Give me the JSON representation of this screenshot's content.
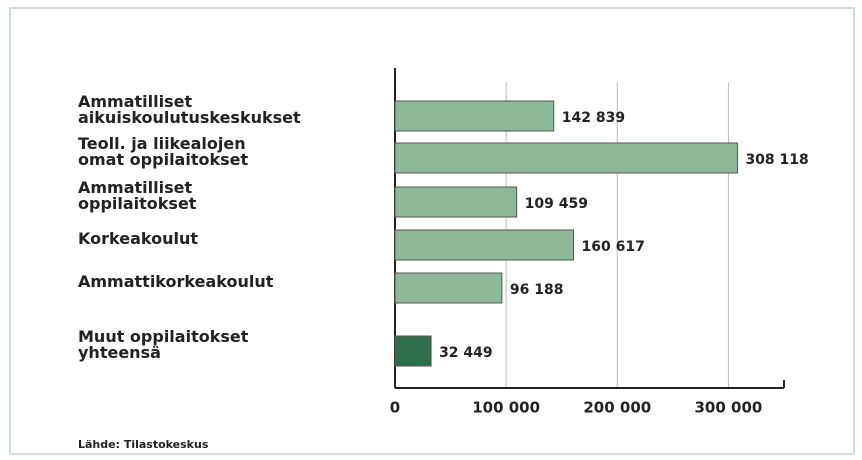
{
  "chart_data": {
    "type": "bar",
    "orientation": "horizontal",
    "categories": [
      "Ammatilliset\naikuiskoulutuskeskukset",
      "Teoll. ja liikealojen\nomat oppilaitokset",
      "Ammatilliset\noppilaitokset",
      "Korkeakoulut",
      "Ammattikorkeakoulut",
      "Muut oppilaitokset\nyhteensä"
    ],
    "values": [
      142839,
      308118,
      109459,
      160617,
      96188,
      32449
    ],
    "value_labels": [
      "142 839",
      "308 118",
      "109 459",
      "160 617",
      "96 188",
      "32 449"
    ],
    "colors": [
      "#8db899",
      "#8db899",
      "#8db899",
      "#8db899",
      "#8db899",
      "#2f6e4c"
    ],
    "xlim": [
      0,
      350000
    ],
    "xticks": [
      0,
      {
        "value": 100000,
        "label": "100 000"
      },
      {
        "value": 200000,
        "label": "200 000"
      },
      {
        "value": 300000,
        "label": "300 000"
      }
    ],
    "grid": true,
    "source": "Lähde: Tilastokeskus"
  }
}
